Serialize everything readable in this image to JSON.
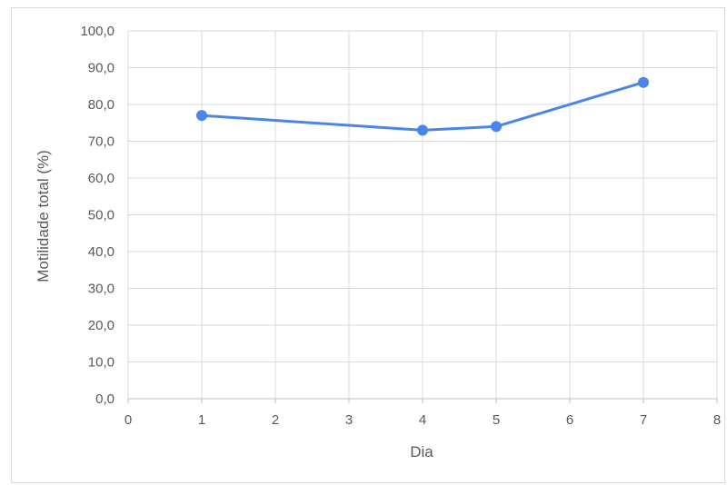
{
  "chart_data": {
    "type": "line",
    "title": "",
    "xlabel": "Dia",
    "ylabel": "Motilidade total (%)",
    "xlim": [
      0,
      8
    ],
    "ylim": [
      0,
      100
    ],
    "x_ticks": [
      0,
      1,
      2,
      3,
      4,
      5,
      6,
      7,
      8
    ],
    "x_tick_labels": [
      "0",
      "1",
      "2",
      "3",
      "4",
      "5",
      "6",
      "7",
      "8"
    ],
    "y_ticks": [
      0,
      10,
      20,
      30,
      40,
      50,
      60,
      70,
      80,
      90,
      100
    ],
    "y_tick_labels": [
      "0,0",
      "10,0",
      "20,0",
      "30,0",
      "40,0",
      "50,0",
      "60,0",
      "70,0",
      "80,0",
      "90,0",
      "100,0"
    ],
    "grid": true,
    "legend": "none",
    "series": [
      {
        "color": "#4a86e8",
        "x": [
          1,
          4,
          5,
          7
        ],
        "y": [
          77,
          73,
          74,
          86
        ]
      }
    ]
  }
}
